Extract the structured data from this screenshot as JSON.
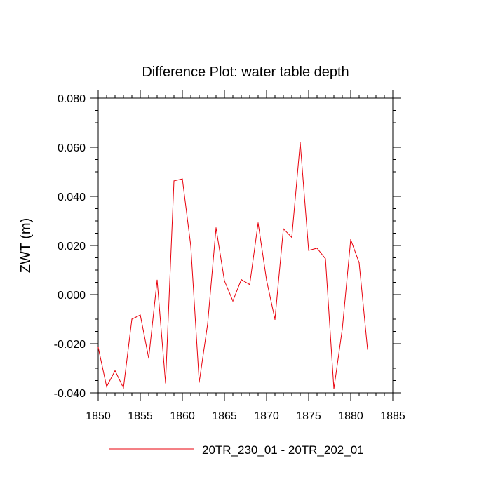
{
  "chart_data": {
    "type": "line",
    "title": "Difference Plot: water table depth",
    "xlabel": "",
    "ylabel": "ZWT  (m)",
    "xlim": [
      1850,
      1885
    ],
    "ylim": [
      -0.04,
      0.08
    ],
    "x_ticks": [
      1850,
      1855,
      1860,
      1865,
      1870,
      1875,
      1880,
      1885
    ],
    "x_tick_labels": [
      "1850",
      "1855",
      "1860",
      "1865",
      "1870",
      "1875",
      "1880",
      "1885"
    ],
    "y_ticks": [
      -0.04,
      -0.02,
      0.0,
      0.02,
      0.04,
      0.06,
      0.08
    ],
    "y_tick_labels": [
      "-0.040",
      "-0.020",
      "0.000",
      "0.020",
      "0.040",
      "0.060",
      "0.080"
    ],
    "grid": false,
    "legend_position": "bottom-center",
    "series": [
      {
        "name": "20TR_230_01 - 20TR_202_01",
        "color": "#e8000b",
        "x": [
          1850,
          1851,
          1852,
          1853,
          1854,
          1855,
          1856,
          1857,
          1858,
          1859,
          1860,
          1861,
          1862,
          1863,
          1864,
          1865,
          1866,
          1867,
          1868,
          1869,
          1870,
          1871,
          1872,
          1873,
          1874,
          1875,
          1876,
          1877,
          1878,
          1879,
          1880,
          1881,
          1882
        ],
        "values": [
          -0.0215,
          -0.0375,
          -0.031,
          -0.038,
          -0.01,
          -0.0083,
          -0.0259,
          0.0059,
          -0.036,
          0.0463,
          0.0471,
          0.0198,
          -0.0357,
          -0.012,
          0.0272,
          0.0056,
          -0.0026,
          0.0061,
          0.0041,
          0.0292,
          0.0059,
          -0.0101,
          0.0268,
          0.0233,
          0.0619,
          0.018,
          0.0189,
          0.0146,
          -0.0384,
          -0.014,
          0.0224,
          0.013,
          -0.0223
        ]
      }
    ]
  }
}
